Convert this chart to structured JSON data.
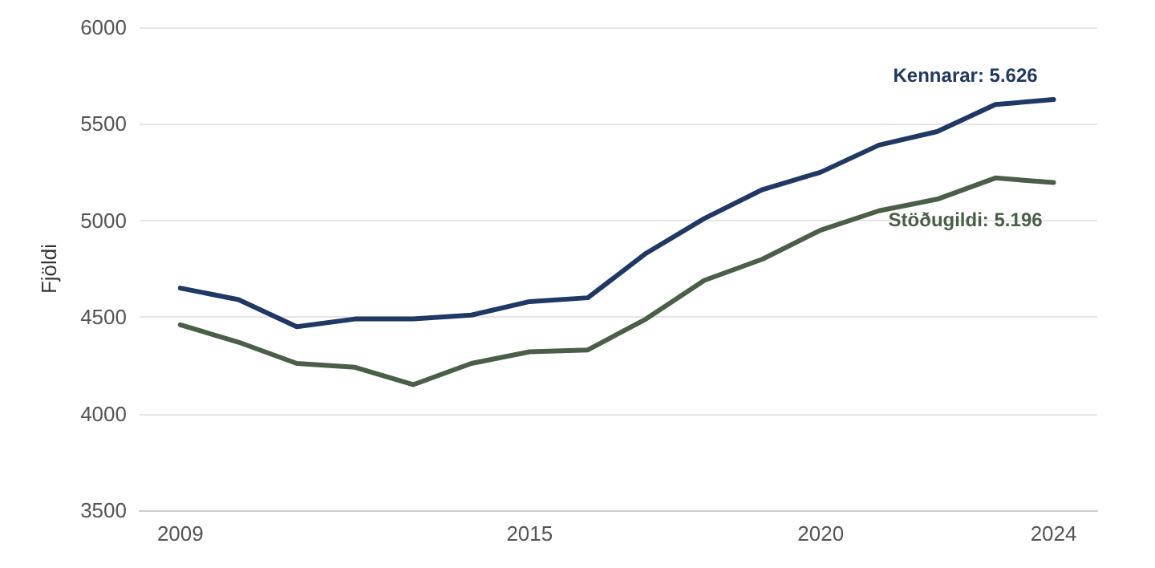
{
  "chart_data": {
    "type": "line",
    "ylabel": "Fjöldi",
    "x": [
      2009,
      2010,
      2011,
      2012,
      2013,
      2014,
      2015,
      2016,
      2017,
      2018,
      2019,
      2020,
      2021,
      2022,
      2023,
      2024
    ],
    "series": [
      {
        "color": "#1f3864",
        "values": [
          4650,
          4590,
          4450,
          4490,
          4490,
          4510,
          4580,
          4600,
          4830,
          5010,
          5160,
          5250,
          5390,
          5460,
          5600,
          5626
        ]
      },
      {
        "color": "#4a5e48",
        "values": [
          4460,
          4370,
          4260,
          4240,
          4150,
          4260,
          4320,
          4330,
          4490,
          4690,
          4800,
          4950,
          5050,
          5110,
          5220,
          5196
        ]
      }
    ],
    "xlim": [
      2008.3,
      2024.75
    ],
    "xticks": [
      2009,
      2015,
      2020,
      2024
    ],
    "ylim": [
      3500,
      6000
    ],
    "yticks": [
      3500,
      4000,
      4500,
      5000,
      5500,
      6000
    ],
    "grid": "y",
    "marker": "none",
    "line_style": "solid",
    "annotations": [
      {
        "text": "Kennarar: 5.626",
        "x": 2024,
        "y": 5626
      },
      {
        "text": "Stöðugildi: 5.196",
        "x": 2024,
        "y": 5196
      }
    ]
  }
}
